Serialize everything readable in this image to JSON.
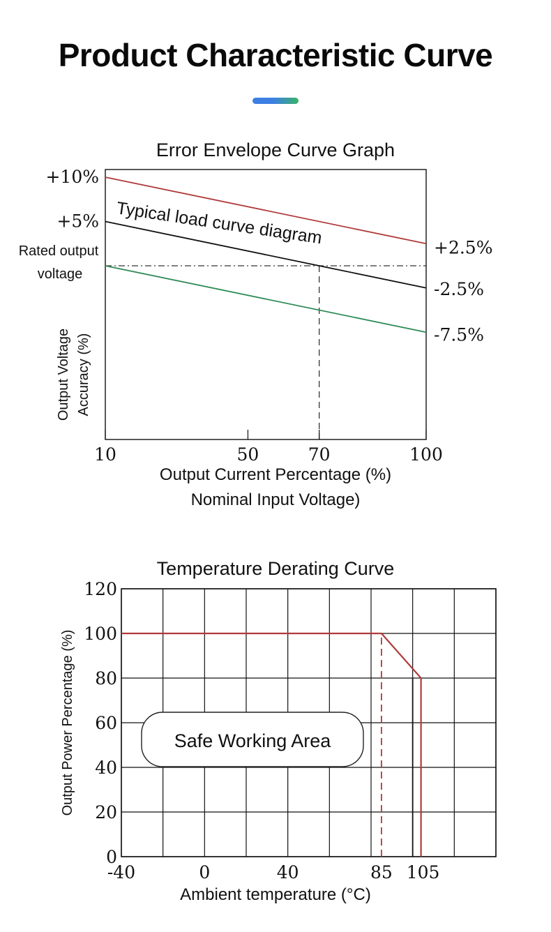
{
  "page": {
    "title": "Product Characteristic Curve",
    "accent_colors": [
      "#3d7fe3",
      "#39b36a"
    ]
  },
  "chart_data": [
    {
      "type": "line",
      "title": "Error Envelope Curve Graph",
      "xlabel": "Output Current Percentage (%)",
      "xlabel_note": "Nominal Input Voltage)",
      "ylabel": "Output Voltage Accuracy (%)",
      "xlim": [
        10,
        100
      ],
      "x_ticks": [
        {
          "value": 10,
          "label": "10"
        },
        {
          "value": 50,
          "label": "50"
        },
        {
          "value": 70,
          "label": "70"
        },
        {
          "value": 100,
          "label": "100"
        }
      ],
      "y_ticks_left": [
        {
          "value": 10,
          "label": "+10%"
        },
        {
          "value": 5,
          "label": "+5%"
        },
        {
          "value": 0,
          "label_lines": [
            "Rated output",
            "voltage"
          ]
        }
      ],
      "y_ticks_right": [
        {
          "value": 2.5,
          "label": "+2.5%"
        },
        {
          "value": -2.5,
          "label": "-2.5%"
        },
        {
          "value": -7.5,
          "label": "-7.5%"
        }
      ],
      "series": [
        {
          "x": [
            10,
            100
          ],
          "y": [
            10,
            2.5
          ],
          "color": "#b03a3a"
        },
        {
          "x": [
            10,
            100
          ],
          "y": [
            5,
            -2.5
          ],
          "color": "#111111"
        },
        {
          "x": [
            10,
            100
          ],
          "y": [
            0,
            -7.5
          ],
          "color": "#2e8b57"
        }
      ],
      "reference_lines": [
        {
          "axis": "y",
          "value": 0,
          "style": "dash-dot"
        },
        {
          "axis": "x",
          "value": 70,
          "style": "dashed"
        }
      ],
      "annotation": {
        "text": "Typical load curve diagram"
      },
      "grid": false
    },
    {
      "type": "line",
      "title": "Temperature Derating Curve",
      "xlabel": "Ambient temperature (°C)",
      "ylabel": "Output Power Percentage (%)",
      "xlim": [
        -40,
        140
      ],
      "ylim": [
        0,
        120
      ],
      "x_ticks": [
        {
          "value": -40,
          "label": "-40"
        },
        {
          "value": 0,
          "label": "0"
        },
        {
          "value": 40,
          "label": "40"
        },
        {
          "value": 85,
          "label": "85"
        },
        {
          "value": 105,
          "label": "105"
        }
      ],
      "x_grid": [
        -40,
        -20,
        0,
        20,
        40,
        60,
        80,
        100,
        120,
        140
      ],
      "y_ticks": [
        0,
        20,
        40,
        60,
        80,
        100,
        120
      ],
      "series": [
        {
          "x": [
            -40,
            85,
            104,
            104
          ],
          "y": [
            100,
            100,
            80,
            0
          ],
          "color": "#b03a3a"
        }
      ],
      "reference_lines": [
        {
          "axis": "x",
          "value": 85,
          "from": 0,
          "to": 100,
          "style": "dashed",
          "color": "#b03a3a"
        },
        {
          "axis": "x",
          "value": 100,
          "from": 0,
          "to": 80,
          "style": "solid",
          "color": "#111111"
        }
      ],
      "annotation": {
        "text": "Safe Working Area"
      },
      "grid": true
    }
  ]
}
